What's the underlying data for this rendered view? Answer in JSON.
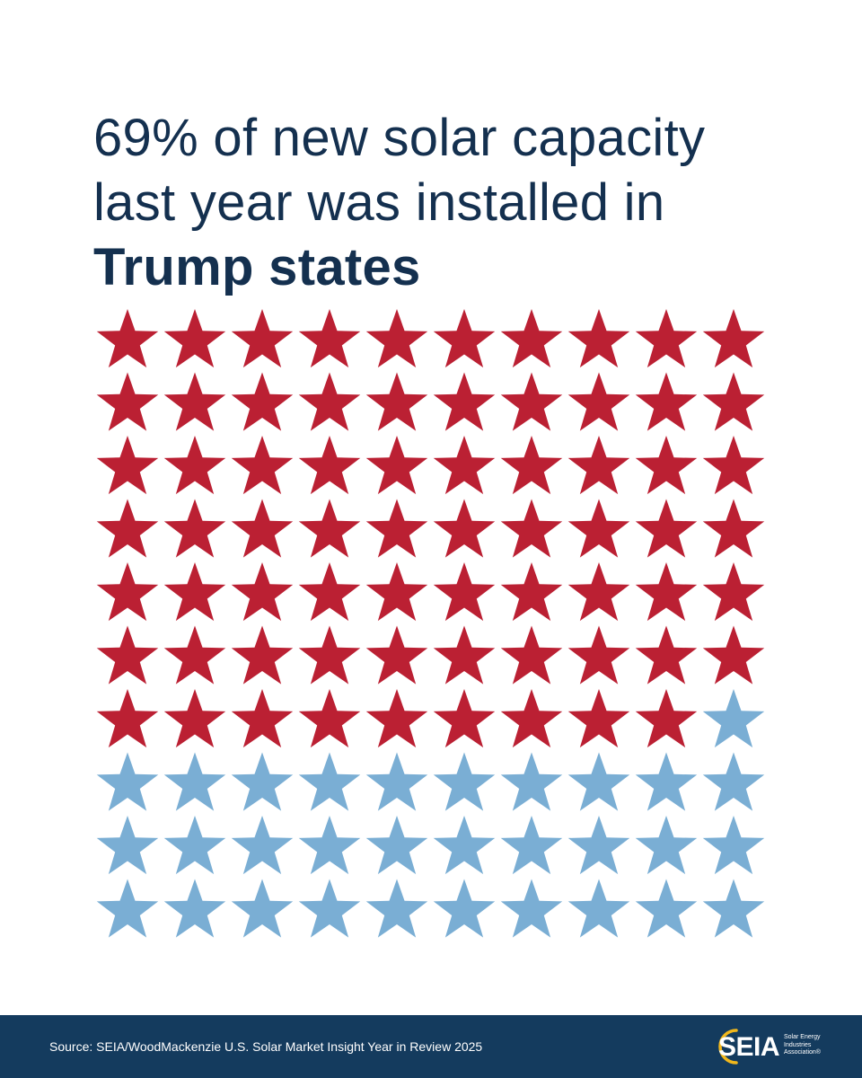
{
  "headline": {
    "line1": "69% of new solar capacity",
    "line2": "last year was installed in",
    "line3": "Trump states"
  },
  "chart_data": {
    "type": "waffle",
    "title": "69% of new solar capacity last year was installed in Trump states",
    "total": 100,
    "rows": 10,
    "columns": 10,
    "series": [
      {
        "name": "Trump states",
        "value": 69,
        "color": "#bb2033"
      },
      {
        "value": 31,
        "color": "#7aaed4"
      }
    ],
    "icon": "star-icon"
  },
  "footer": {
    "source": "Source: SEIA/WoodMackenzie U.S. Solar Market Insight Year in Review 2025",
    "background": "#143b5e",
    "logo": {
      "wordmark": "SEIA",
      "tagline": [
        "Solar Energy",
        "Industries",
        "Association®"
      ],
      "accent": "#f2b81c"
    }
  },
  "colors": {
    "headline": "#14304f",
    "background": "#ffffff"
  }
}
